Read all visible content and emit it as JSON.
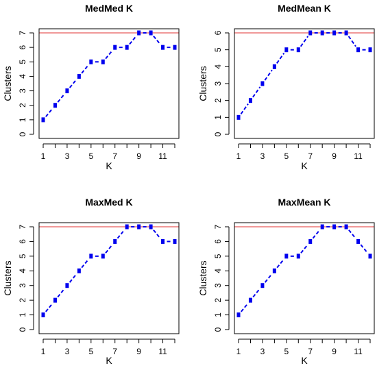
{
  "chart_data": [
    {
      "type": "line",
      "title": "MedMed K",
      "xlabel": "K",
      "ylabel": "Clusters",
      "x": [
        1,
        2,
        3,
        4,
        5,
        6,
        7,
        8,
        9,
        10,
        11,
        12
      ],
      "values": [
        1,
        2,
        3,
        4,
        5,
        5,
        6,
        6,
        7,
        7,
        6,
        6
      ],
      "xticks": [
        1,
        3,
        5,
        7,
        9,
        11
      ],
      "yticks": [
        0,
        1,
        2,
        3,
        4,
        5,
        6,
        7
      ],
      "xlim": [
        1,
        12
      ],
      "ylim": [
        0,
        7
      ],
      "reference_line": 7,
      "colors": {
        "series": "#0000ee",
        "reference": "#e03030"
      }
    },
    {
      "type": "line",
      "title": "MedMean K",
      "xlabel": "K",
      "ylabel": "Clusters",
      "x": [
        1,
        2,
        3,
        4,
        5,
        6,
        7,
        8,
        9,
        10,
        11,
        12
      ],
      "values": [
        1,
        2,
        3,
        4,
        5,
        5,
        6,
        6,
        6,
        6,
        5,
        5
      ],
      "xticks": [
        1,
        3,
        5,
        7,
        9,
        11
      ],
      "yticks": [
        0,
        1,
        2,
        3,
        4,
        5,
        6
      ],
      "xlim": [
        1,
        12
      ],
      "ylim": [
        0,
        6
      ],
      "reference_line": 6,
      "colors": {
        "series": "#0000ee",
        "reference": "#e03030"
      }
    },
    {
      "type": "line",
      "title": "MaxMed K",
      "xlabel": "K",
      "ylabel": "Clusters",
      "x": [
        1,
        2,
        3,
        4,
        5,
        6,
        7,
        8,
        9,
        10,
        11,
        12
      ],
      "values": [
        1,
        2,
        3,
        4,
        5,
        5,
        6,
        7,
        7,
        7,
        6,
        6
      ],
      "xticks": [
        1,
        3,
        5,
        7,
        9,
        11
      ],
      "yticks": [
        0,
        1,
        2,
        3,
        4,
        5,
        6,
        7
      ],
      "xlim": [
        1,
        12
      ],
      "ylim": [
        0,
        7
      ],
      "reference_line": 7,
      "colors": {
        "series": "#0000ee",
        "reference": "#e03030"
      }
    },
    {
      "type": "line",
      "title": "MaxMean K",
      "xlabel": "K",
      "ylabel": "Clusters",
      "x": [
        1,
        2,
        3,
        4,
        5,
        6,
        7,
        8,
        9,
        10,
        11,
        12
      ],
      "values": [
        1,
        2,
        3,
        4,
        5,
        5,
        6,
        7,
        7,
        7,
        6,
        5
      ],
      "xticks": [
        1,
        3,
        5,
        7,
        9,
        11
      ],
      "yticks": [
        0,
        1,
        2,
        3,
        4,
        5,
        6,
        7
      ],
      "xlim": [
        1,
        12
      ],
      "ylim": [
        0,
        7
      ],
      "reference_line": 7,
      "colors": {
        "series": "#0000ee",
        "reference": "#e03030"
      }
    }
  ]
}
